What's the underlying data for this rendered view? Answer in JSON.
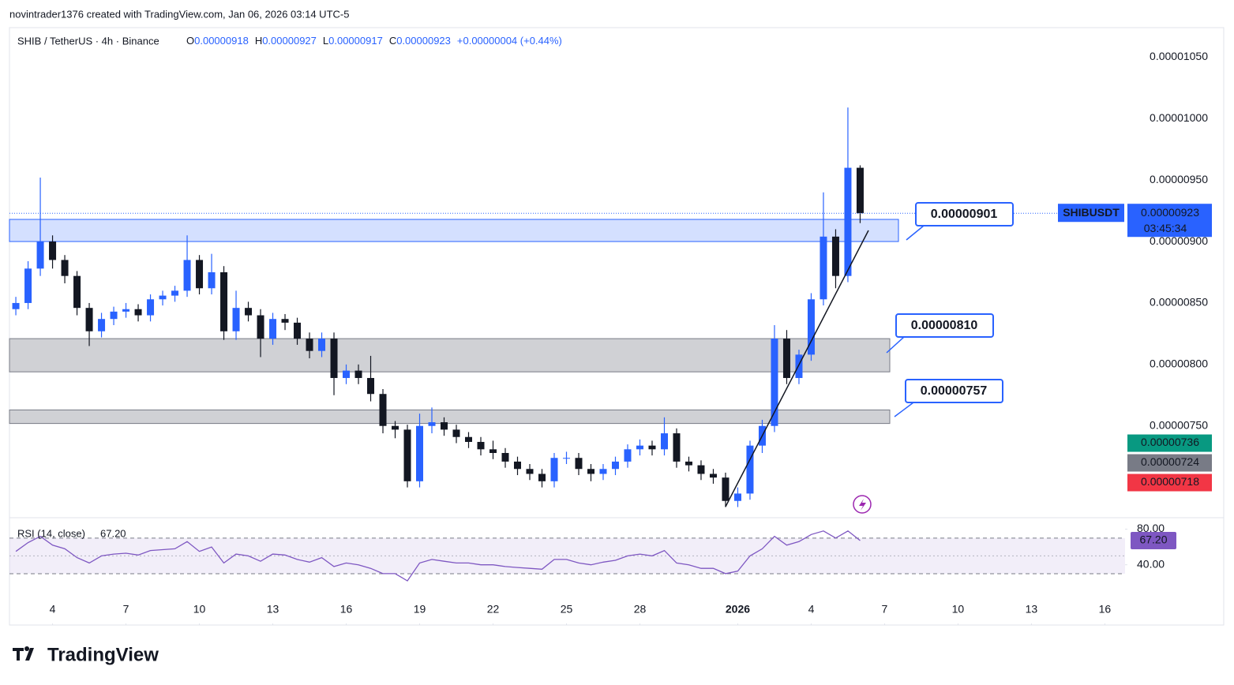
{
  "attribution": "novintrader1376 created with TradingView.com, Jan 06, 2026 03:14 UTC-5",
  "brand": "TradingView",
  "chart_data": {
    "type": "candlestick",
    "title": "SHIB / TetherUS · 4h · Binance",
    "ohlc_legend": {
      "labels": [
        "O",
        "H",
        "L",
        "C"
      ],
      "values": [
        "0.00000918",
        "0.00000927",
        "0.00000917",
        "0.00000923"
      ],
      "change": "+0.00000004 (+0.44%)"
    },
    "ylim": [
      6.76e-06,
      1.074e-05
    ],
    "yticks": [
      {
        "value": 1.05e-05,
        "label": "0.00001050"
      },
      {
        "value": 1e-05,
        "label": "0.00001000"
      },
      {
        "value": 9.5e-06,
        "label": "0.00000950"
      },
      {
        "value": 9e-06,
        "label": "0.00000900"
      },
      {
        "value": 8.5e-06,
        "label": "0.00000850"
      },
      {
        "value": 8e-06,
        "label": "0.00000800"
      },
      {
        "value": 7.5e-06,
        "label": "0.00000750"
      }
    ],
    "xlim": [
      -0.52,
      90.65
    ],
    "xticks": [
      {
        "value": 3,
        "label": "4"
      },
      {
        "value": 9,
        "label": "7"
      },
      {
        "value": 15,
        "label": "10"
      },
      {
        "value": 21,
        "label": "13"
      },
      {
        "value": 27,
        "label": "16"
      },
      {
        "value": 33,
        "label": "19"
      },
      {
        "value": 39,
        "label": "22"
      },
      {
        "value": 45,
        "label": "25"
      },
      {
        "value": 51,
        "label": "28"
      },
      {
        "value": 59,
        "label": "2026"
      },
      {
        "value": 65,
        "label": "4"
      },
      {
        "value": 71,
        "label": "7"
      },
      {
        "value": 77,
        "label": "10"
      },
      {
        "value": 83,
        "label": "13"
      },
      {
        "value": 89,
        "label": "16"
      }
    ],
    "up_color": "#2962ff",
    "down_color": "#131722",
    "open": [
      8.45e-06,
      8.5e-06,
      8.78e-06,
      9e-06,
      8.85e-06,
      8.72e-06,
      8.46e-06,
      8.27e-06,
      8.37e-06,
      8.43e-06,
      8.45e-06,
      8.4e-06,
      8.53e-06,
      8.56e-06,
      8.6e-06,
      8.85e-06,
      8.62e-06,
      8.75e-06,
      8.27e-06,
      8.46e-06,
      8.4e-06,
      8.21e-06,
      8.37e-06,
      8.34e-06,
      8.21e-06,
      8.11e-06,
      8.21e-06,
      7.89e-06,
      7.95e-06,
      7.89e-06,
      7.76e-06,
      7.5e-06,
      7.47e-06,
      7.05e-06,
      7.5e-06,
      7.53e-06,
      7.47e-06,
      7.41e-06,
      7.37e-06,
      7.31e-06,
      7.28e-06,
      7.21e-06,
      7.15e-06,
      7.11e-06,
      7.05e-06,
      7.24e-06,
      7.24e-06,
      7.15e-06,
      7.11e-06,
      7.15e-06,
      7.21e-06,
      7.31e-06,
      7.34e-06,
      7.31e-06,
      7.44e-06,
      7.21e-06,
      7.18e-06,
      7.11e-06,
      7.08e-06,
      6.89e-06,
      6.95e-06,
      7.34e-06,
      7.5e-06,
      8.21e-06,
      7.89e-06,
      8.08e-06,
      8.53e-06,
      9.04e-06,
      8.72e-06,
      9.6e-06
    ],
    "high": [
      8.55e-06,
      8.84e-06,
      9.52e-06,
      9.05e-06,
      8.89e-06,
      8.76e-06,
      8.5e-06,
      8.42e-06,
      8.47e-06,
      8.5e-06,
      8.49e-06,
      8.57e-06,
      8.6e-06,
      8.64e-06,
      9.05e-06,
      8.89e-06,
      8.9e-06,
      8.8e-06,
      8.6e-06,
      8.51e-06,
      8.45e-06,
      8.42e-06,
      8.41e-06,
      8.38e-06,
      8.26e-06,
      8.26e-06,
      8.26e-06,
      8e-06,
      8e-06,
      8.07e-06,
      7.8e-06,
      7.54e-06,
      7.51e-06,
      7.6e-06,
      7.65e-06,
      7.57e-06,
      7.51e-06,
      7.45e-06,
      7.41e-06,
      7.38e-06,
      7.32e-06,
      7.25e-06,
      7.19e-06,
      7.15e-06,
      7.28e-06,
      7.29e-06,
      7.28e-06,
      7.19e-06,
      7.19e-06,
      7.25e-06,
      7.35e-06,
      7.39e-06,
      7.38e-06,
      7.57e-06,
      7.48e-06,
      7.25e-06,
      7.22e-06,
      7.15e-06,
      7.12e-06,
      7e-06,
      7.38e-06,
      7.55e-06,
      8.32e-06,
      8.28e-06,
      8.12e-06,
      8.58e-06,
      9.4e-06,
      9.1e-06,
      1.009e-05,
      9.62e-06
    ],
    "low": [
      8.4e-06,
      8.45e-06,
      8.72e-06,
      8.78e-06,
      8.66e-06,
      8.4e-06,
      8.15e-06,
      8.22e-06,
      8.32e-06,
      8.38e-06,
      8.35e-06,
      8.35e-06,
      8.48e-06,
      8.51e-06,
      8.55e-06,
      8.57e-06,
      8.57e-06,
      8.2e-06,
      8.2e-06,
      8.35e-06,
      8.06e-06,
      8.16e-06,
      8.28e-06,
      8.16e-06,
      8.05e-06,
      8.06e-06,
      7.75e-06,
      7.84e-06,
      7.84e-06,
      7.7e-06,
      7.44e-06,
      7.4e-06,
      7e-06,
      7e-06,
      7.44e-06,
      7.42e-06,
      7.36e-06,
      7.32e-06,
      7.26e-06,
      7.23e-06,
      7.16e-06,
      7.1e-06,
      7.06e-06,
      7e-06,
      7e-06,
      7.19e-06,
      7.1e-06,
      7.05e-06,
      7.06e-06,
      7.1e-06,
      7.16e-06,
      7.26e-06,
      7.26e-06,
      7.26e-06,
      7.16e-06,
      7.13e-06,
      7.06e-06,
      7.03e-06,
      6.84e-06,
      6.84e-06,
      6.9e-06,
      7.28e-06,
      7.45e-06,
      7.84e-06,
      7.84e-06,
      8.03e-06,
      8.48e-06,
      8.62e-06,
      8.67e-06,
      9.15e-06
    ],
    "close": [
      8.5e-06,
      8.78e-06,
      9e-06,
      8.85e-06,
      8.72e-06,
      8.46e-06,
      8.27e-06,
      8.37e-06,
      8.43e-06,
      8.45e-06,
      8.4e-06,
      8.53e-06,
      8.56e-06,
      8.6e-06,
      8.85e-06,
      8.62e-06,
      8.75e-06,
      8.27e-06,
      8.46e-06,
      8.4e-06,
      8.21e-06,
      8.37e-06,
      8.34e-06,
      8.21e-06,
      8.11e-06,
      8.21e-06,
      7.89e-06,
      7.95e-06,
      7.89e-06,
      7.76e-06,
      7.5e-06,
      7.47e-06,
      7.05e-06,
      7.5e-06,
      7.53e-06,
      7.47e-06,
      7.41e-06,
      7.37e-06,
      7.31e-06,
      7.28e-06,
      7.21e-06,
      7.15e-06,
      7.11e-06,
      7.05e-06,
      7.24e-06,
      7.24e-06,
      7.15e-06,
      7.11e-06,
      7.15e-06,
      7.21e-06,
      7.31e-06,
      7.34e-06,
      7.31e-06,
      7.44e-06,
      7.21e-06,
      7.18e-06,
      7.11e-06,
      7.08e-06,
      6.89e-06,
      6.95e-06,
      7.34e-06,
      7.5e-06,
      8.21e-06,
      7.89e-06,
      8.08e-06,
      8.53e-06,
      9.04e-06,
      8.72e-06,
      9.6e-06,
      9.23e-06
    ],
    "zones": [
      {
        "value": 9.01e-06,
        "label": "0.00000901",
        "top": 9.18e-06,
        "bottom": 9e-06,
        "color": "#2962ff"
      },
      {
        "value": 8.1e-06,
        "label": "0.00000810",
        "top": 8.21e-06,
        "bottom": 7.94e-06,
        "color": "#787b86"
      },
      {
        "value": 7.57e-06,
        "label": "0.00000757",
        "top": 7.63e-06,
        "bottom": 7.52e-06,
        "color": "#787b86"
      }
    ],
    "last_price": {
      "symbol": "SHIBUSDT",
      "value": 9.23e-06,
      "label": "0.00000923",
      "countdown": "03:45:34"
    },
    "price_tags": [
      {
        "value": 7.36e-06,
        "label": "0.00000736",
        "color": "#089981"
      },
      {
        "value": 7.24e-06,
        "label": "0.00000724",
        "color": "#787b86"
      },
      {
        "value": 7.18e-06,
        "label": "0.00000718",
        "color": "#f23645"
      }
    ],
    "rsi": {
      "title": "RSI (14, close)",
      "value": 67.2,
      "value_label": "67.20",
      "color": "#7e57c2",
      "ylim": [
        14,
        92
      ],
      "yticks": [
        {
          "value": 80,
          "label": "80.00"
        },
        {
          "value": 40,
          "label": "40.00"
        }
      ],
      "band": [
        30,
        70
      ],
      "values": [
        55,
        65,
        72,
        62,
        58,
        48,
        42,
        50,
        52,
        53,
        51,
        56,
        57,
        58,
        66,
        55,
        60,
        42,
        52,
        50,
        44,
        52,
        51,
        46,
        43,
        48,
        38,
        42,
        40,
        36,
        30,
        30,
        22,
        42,
        46,
        44,
        42,
        42,
        40,
        40,
        38,
        37,
        36,
        35,
        46,
        46,
        42,
        40,
        43,
        45,
        50,
        52,
        50,
        56,
        42,
        40,
        36,
        36,
        30,
        33,
        50,
        58,
        72,
        62,
        66,
        74,
        78,
        70,
        78,
        67.2
      ]
    }
  }
}
